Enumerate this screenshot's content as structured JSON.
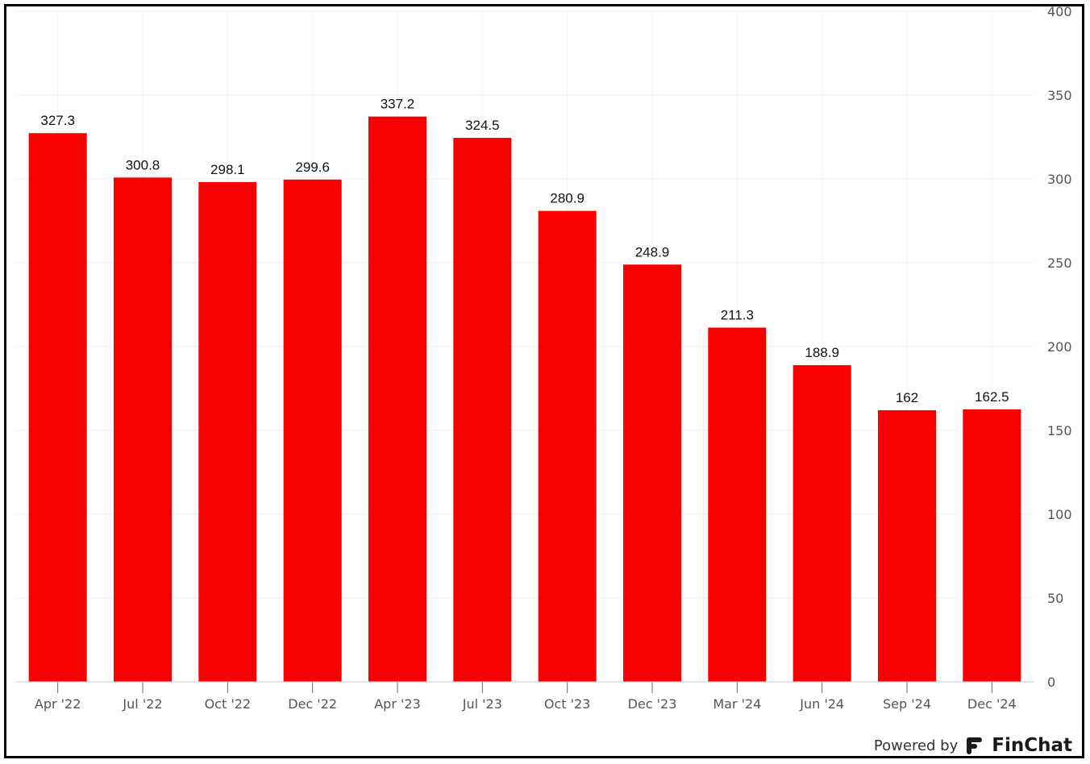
{
  "chart_data": {
    "type": "bar",
    "categories": [
      "Apr '22",
      "Jul '22",
      "Oct '22",
      "Dec '22",
      "Apr '23",
      "Jul '23",
      "Oct '23",
      "Dec '23",
      "Mar '24",
      "Jun '24",
      "Sep '24",
      "Dec '24"
    ],
    "values": [
      327.3,
      300.8,
      298.1,
      299.6,
      337.2,
      324.5,
      280.9,
      248.9,
      211.3,
      188.9,
      162,
      162.5
    ],
    "value_labels": [
      "327.3",
      "300.8",
      "298.1",
      "299.6",
      "337.2",
      "324.5",
      "280.9",
      "248.9",
      "211.3",
      "188.9",
      "162",
      "162.5"
    ],
    "ylim": [
      0,
      400
    ],
    "yticks": [
      0,
      50,
      100,
      150,
      200,
      250,
      300,
      350,
      400
    ],
    "y_axis_side": "right",
    "grid": true,
    "bar_color": "#f90000",
    "title": "",
    "xlabel": "",
    "ylabel": ""
  },
  "branding": {
    "powered_by": "Powered by",
    "brand": "FinChat",
    "icon": "finchat-logo-icon"
  }
}
